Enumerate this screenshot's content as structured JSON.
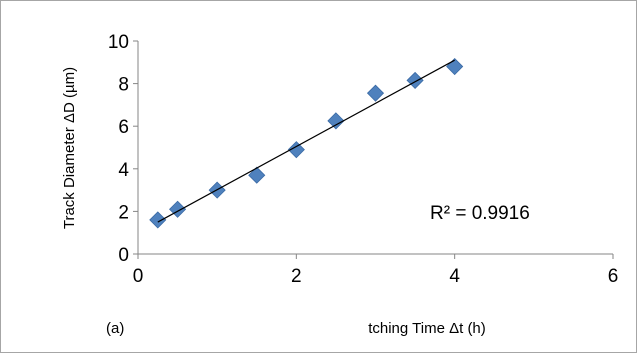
{
  "chart_data": {
    "type": "scatter",
    "xlabel": "tching Time Δt (h)",
    "ylabel": "Track Diameter ΔD (µm)",
    "panel_label": "(a)",
    "xlim": [
      0,
      6
    ],
    "ylim": [
      0,
      10
    ],
    "x_ticks": [
      "0",
      "2",
      "4",
      "6"
    ],
    "y_ticks": [
      "0",
      "2",
      "4",
      "6",
      "8",
      "10"
    ],
    "x_tick_values": [
      0,
      2,
      4,
      6
    ],
    "y_tick_values": [
      0,
      2,
      4,
      6,
      8,
      10
    ],
    "grid": false,
    "legend": "none",
    "marker": "diamond",
    "marker_color": "#4F81BD",
    "trendline_color": "#000000",
    "series": [
      {
        "x": [
          0.25,
          0.5,
          1.0,
          1.5,
          2.0,
          2.5,
          3.0,
          3.5,
          4.0
        ],
        "y": [
          1.6,
          2.1,
          3.0,
          3.7,
          4.9,
          6.25,
          7.55,
          8.15,
          8.8
        ]
      }
    ],
    "trendline": {
      "x": [
        0.25,
        4.0
      ],
      "y": [
        1.5,
        9.1
      ]
    },
    "annotation": "R² = 0.9916"
  }
}
